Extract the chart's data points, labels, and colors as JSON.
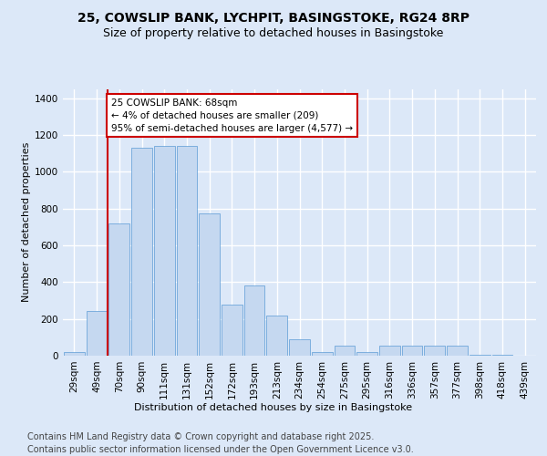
{
  "title_line1": "25, COWSLIP BANK, LYCHPIT, BASINGSTOKE, RG24 8RP",
  "title_line2": "Size of property relative to detached houses in Basingstoke",
  "xlabel": "Distribution of detached houses by size in Basingstoke",
  "ylabel": "Number of detached properties",
  "categories": [
    "29sqm",
    "49sqm",
    "70sqm",
    "90sqm",
    "111sqm",
    "131sqm",
    "152sqm",
    "172sqm",
    "193sqm",
    "213sqm",
    "234sqm",
    "254sqm",
    "275sqm",
    "295sqm",
    "316sqm",
    "336sqm",
    "357sqm",
    "377sqm",
    "398sqm",
    "418sqm",
    "439sqm"
  ],
  "values": [
    20,
    245,
    720,
    1130,
    1140,
    1140,
    775,
    280,
    380,
    220,
    90,
    20,
    55,
    20,
    55,
    55,
    55,
    55,
    5,
    5,
    0
  ],
  "bar_color": "#c5d8f0",
  "bar_edge_color": "#5b9bd5",
  "vline_color": "#cc0000",
  "vline_x": 1.5,
  "annotation_text": "25 COWSLIP BANK: 68sqm\n← 4% of detached houses are smaller (209)\n95% of semi-detached houses are larger (4,577) →",
  "annotation_box_color": "white",
  "annotation_box_edge_color": "#cc0000",
  "footer_line1": "Contains HM Land Registry data © Crown copyright and database right 2025.",
  "footer_line2": "Contains public sector information licensed under the Open Government Licence v3.0.",
  "bg_color": "#dce8f8",
  "plot_bg_color": "#dce8f8",
  "grid_color": "white",
  "ylim": [
    0,
    1450
  ],
  "yticks": [
    0,
    200,
    400,
    600,
    800,
    1000,
    1200,
    1400
  ],
  "title_fontsize": 10,
  "subtitle_fontsize": 9,
  "axis_fontsize": 8,
  "tick_fontsize": 7.5,
  "footer_fontsize": 7
}
